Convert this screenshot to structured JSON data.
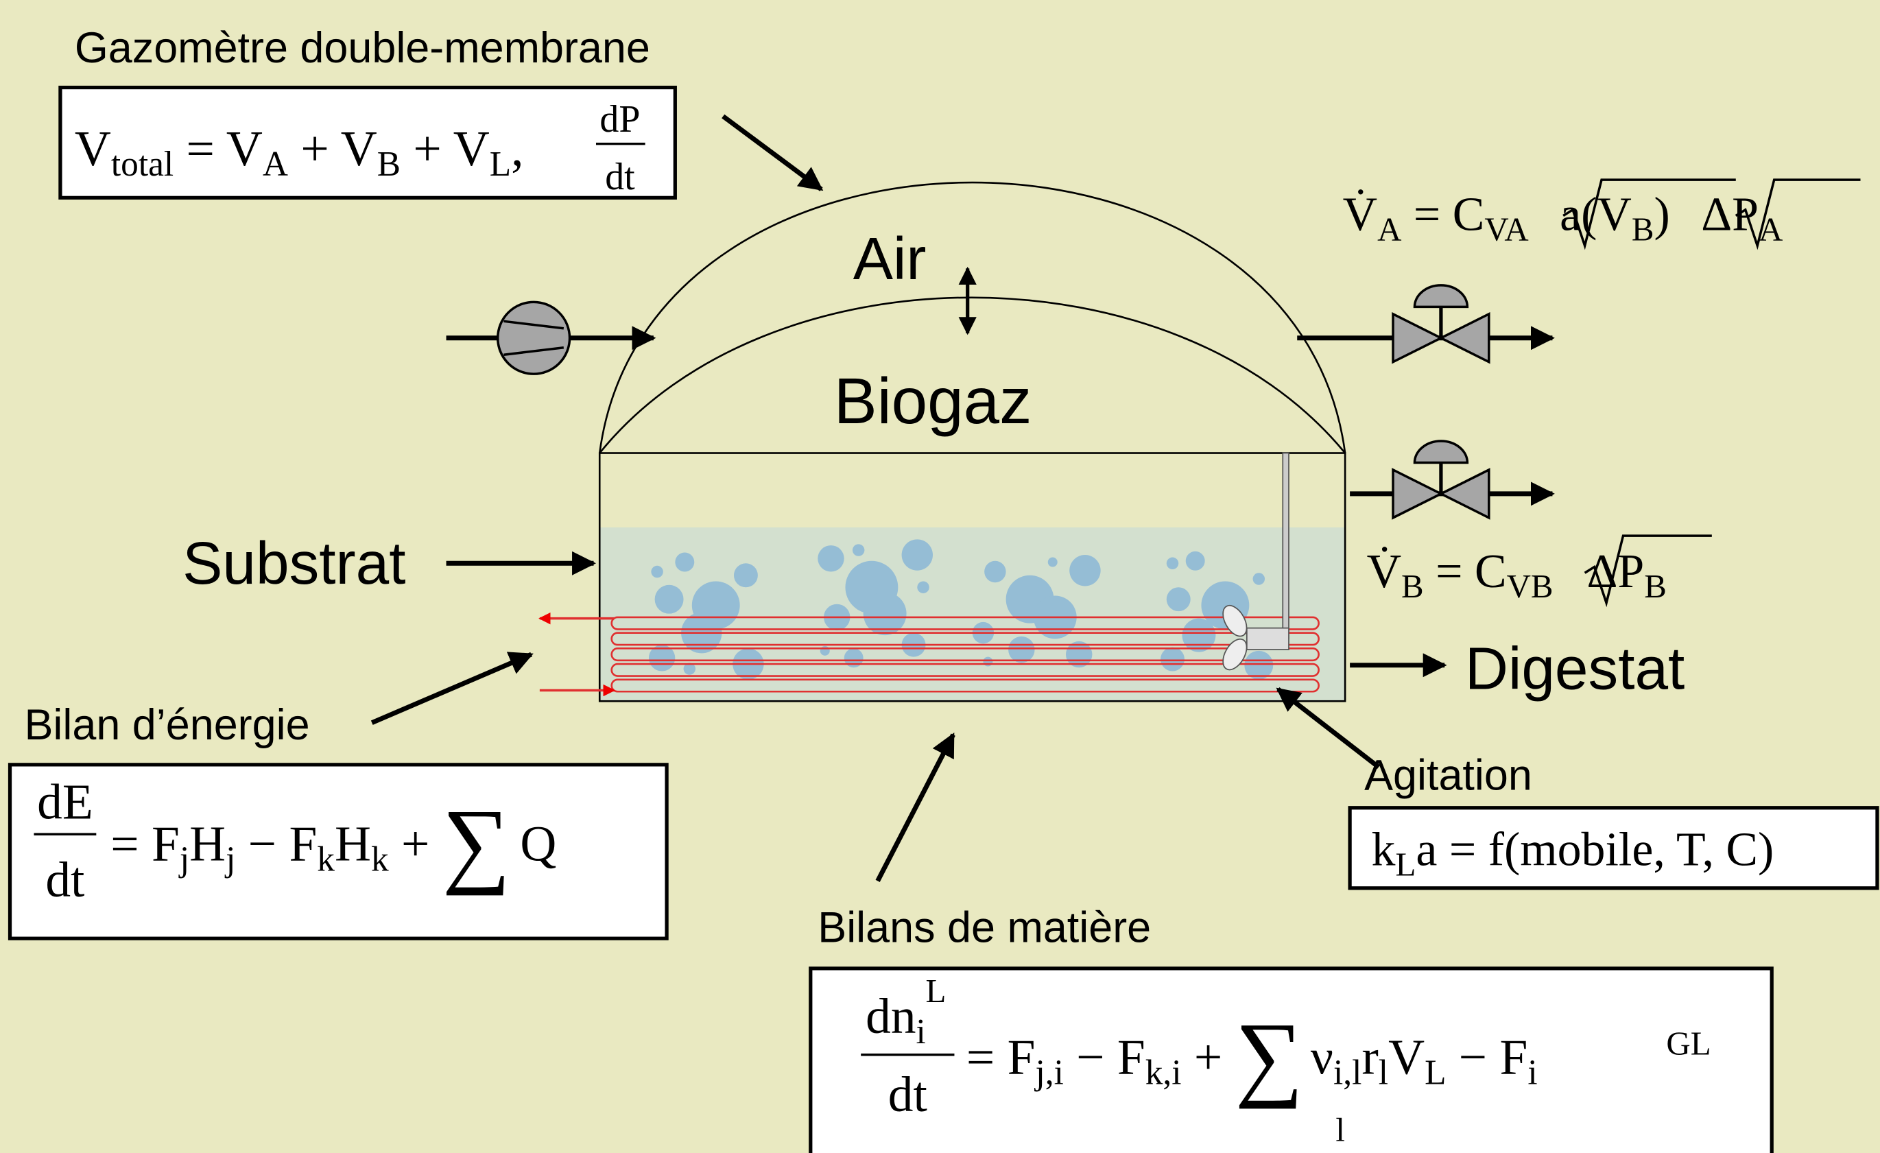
{
  "labels": {
    "gasometer": "Gazomètre double-membrane",
    "air": "Air",
    "biogas": "Biogaz",
    "substrate": "Substrat",
    "digestate": "Digestat",
    "energy_balance": "Bilan d’énergie",
    "mass_balances": "Bilans de matière",
    "agitation": "Agitation"
  },
  "equations": {
    "gas_volume": [
      "V",
      "total",
      " = V",
      "A",
      " + V",
      "B",
      " + V",
      "L",
      ",",
      "dP",
      "dt"
    ],
    "flow_a": [
      "V̇",
      "A",
      " = C",
      "VA",
      "a(V",
      "B",
      ")",
      "ΔP",
      "A"
    ],
    "flow_b": [
      "V̇",
      "B",
      " = C",
      "VB",
      "ΔP",
      "B"
    ],
    "energy": [
      "dE",
      "dt",
      "= F",
      "j",
      "H",
      "j",
      " − F",
      "k",
      "H",
      "k",
      " + ",
      "∑",
      "Q"
    ],
    "mass": [
      "dn",
      "i",
      "L",
      "dt",
      "= F",
      "j,i",
      " − F",
      "k,i",
      " + ",
      "∑",
      "l",
      "ν",
      "i,l",
      "r",
      "l",
      "V",
      "L",
      " − F",
      "i",
      "GL"
    ],
    "transfer": [
      "k",
      "L",
      "a = f(mobile, T, C)"
    ]
  }
}
